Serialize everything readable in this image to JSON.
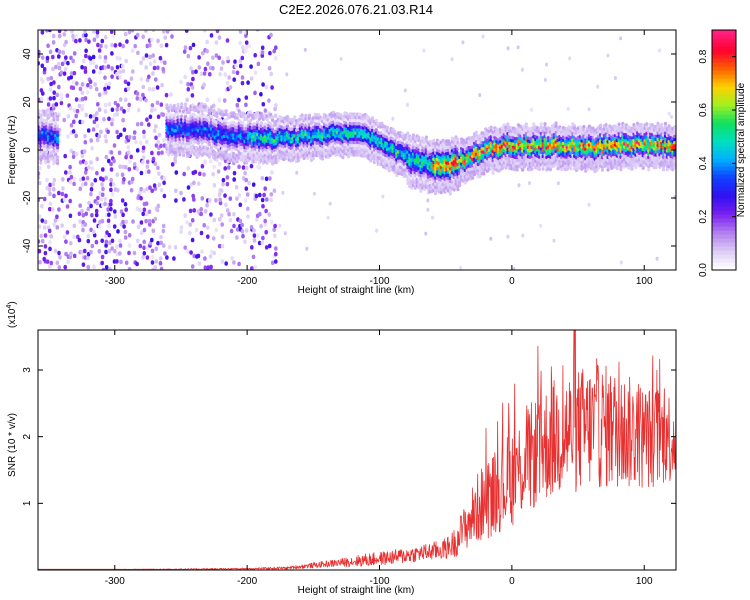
{
  "figure_title": "C2E2.2026.076.21.03.R14",
  "colors": {
    "frame": "#000000",
    "snr_line": "#e83030",
    "background": "#ffffff",
    "colormap": [
      "#ffffff",
      "#d9c8f5",
      "#b07cf0",
      "#7a1ff0",
      "#3010f0",
      "#1040ff",
      "#00b0ff",
      "#00e0c0",
      "#10e060",
      "#a0f020",
      "#ffd000",
      "#ff6000",
      "#ff0030",
      "#ff2080"
    ]
  },
  "chart_data": [
    {
      "type": "heatmap",
      "name": "spectrogram",
      "title": "C2E2.2026.076.21.03.R14",
      "xlabel": "Height of straight line (km)",
      "ylabel": "Frequency (Hz)",
      "xlim": [
        -358,
        124
      ],
      "ylim": [
        -50,
        50
      ],
      "x_ticks": [
        -300,
        -200,
        -100,
        0,
        100
      ],
      "x_tick_labels": [
        "-300",
        "-200",
        "-100",
        "0",
        "100"
      ],
      "y_ticks": [
        -40,
        -20,
        0,
        20,
        40
      ],
      "y_tick_labels": [
        "-40",
        "-20",
        "0",
        "20",
        "40"
      ],
      "colorbar": {
        "label": "Normalized spectral amplitude",
        "range": [
          0,
          0.9
        ],
        "ticks": [
          0.0,
          0.2,
          0.4,
          0.6,
          0.8
        ],
        "tick_labels": [
          "0.0",
          "0.2",
          "0.4",
          "0.6",
          "0.8"
        ]
      },
      "ridge_trace": {
        "description": "dominant frequency ridge vs height",
        "x": [
          -358,
          -345,
          -260,
          -230,
          -215,
          -190,
          -170,
          -150,
          -130,
          -120,
          -110,
          -100,
          -90,
          -80,
          -70,
          -60,
          -50,
          -40,
          -30,
          -20,
          -10,
          0,
          20,
          40,
          60,
          80,
          100,
          124
        ],
        "freq": [
          6,
          5,
          9,
          8,
          6,
          5,
          5,
          6,
          7,
          7,
          6,
          3,
          0,
          -3,
          -5,
          -6,
          -7,
          -5,
          -2,
          0,
          1,
          2,
          2,
          2,
          1,
          2,
          2,
          2
        ]
      },
      "noise_region_end_x": -178
    },
    {
      "type": "line",
      "name": "snr",
      "title": "",
      "xlabel": "Height of straight line (km)",
      "ylabel": "SNR (10 * v/v)",
      "y_scale_label": "(x10",
      "y_scale_exponent": "4",
      "xlim": [
        -358,
        124
      ],
      "ylim": [
        0,
        3.6
      ],
      "x_ticks": [
        -300,
        -200,
        -100,
        0,
        100
      ],
      "x_tick_labels": [
        "-300",
        "-200",
        "-100",
        "0",
        "100"
      ],
      "y_ticks": [
        1,
        2,
        3
      ],
      "y_tick_labels": [
        "1",
        "2",
        "3"
      ],
      "series": [
        {
          "name": "SNR",
          "x": [
            -358,
            -300,
            -250,
            -200,
            -170,
            -160,
            -150,
            -140,
            -130,
            -120,
            -110,
            -100,
            -90,
            -80,
            -70,
            -60,
            -50,
            -45,
            -40,
            -35,
            -30,
            -25,
            -20,
            -10,
            0,
            10,
            20,
            30,
            40,
            50,
            60,
            70,
            80,
            90,
            100,
            110,
            124
          ],
          "values": [
            0.01,
            0.01,
            0.01,
            0.02,
            0.03,
            0.05,
            0.07,
            0.09,
            0.11,
            0.13,
            0.15,
            0.17,
            0.19,
            0.22,
            0.25,
            0.28,
            0.32,
            0.38,
            0.5,
            0.65,
            0.8,
            0.95,
            1.05,
            1.2,
            1.4,
            1.6,
            1.8,
            1.95,
            2.05,
            2.1,
            2.15,
            2.15,
            2.1,
            2.05,
            2.0,
            2.0,
            2.0
          ],
          "noise_amplitude": [
            0.0,
            0.0,
            0.01,
            0.01,
            0.02,
            0.03,
            0.04,
            0.05,
            0.06,
            0.08,
            0.1,
            0.1,
            0.11,
            0.12,
            0.12,
            0.14,
            0.16,
            0.2,
            0.28,
            0.35,
            0.45,
            0.55,
            0.6,
            0.65,
            0.75,
            0.8,
            0.85,
            0.9,
            0.95,
            0.95,
            0.95,
            0.95,
            0.9,
            0.85,
            0.8,
            0.75,
            0.7
          ]
        }
      ]
    }
  ]
}
